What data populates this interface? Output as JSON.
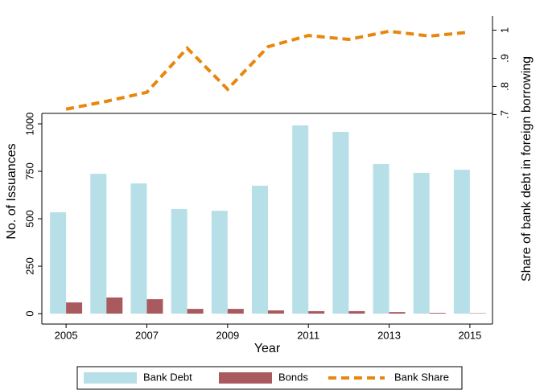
{
  "chart_data": {
    "type": "bar-line",
    "x": [
      2005,
      2006,
      2007,
      2008,
      2009,
      2010,
      2011,
      2012,
      2013,
      2014,
      2015
    ],
    "xlim": [
      2004.4,
      2015.56
    ],
    "xticks": [
      2005,
      2007,
      2009,
      2011,
      2013,
      2015
    ],
    "x_label": "Year",
    "y_label": "No. of Issuances",
    "y2_label": "Share of bank debt in foreign borrowing",
    "ylim": [
      -55,
      1568
    ],
    "yticks": [
      0,
      250,
      500,
      750,
      1000
    ],
    "y2lim": [
      -0.045,
      1.05
    ],
    "y2ticks": [
      {
        "value": 0.7,
        "label": ".7"
      },
      {
        "value": 0.8,
        "label": ".8"
      },
      {
        "value": 0.9,
        "label": ".9"
      },
      {
        "value": 1,
        "label": "1"
      }
    ],
    "series": [
      {
        "name": "Bank Debt",
        "kind": "bar",
        "color": "#b7dfe7",
        "values": [
          534,
          737,
          686,
          551,
          542,
          674,
          992,
          958,
          788,
          742,
          758
        ]
      },
      {
        "name": "Bonds",
        "kind": "bar",
        "color": "#a85a5e",
        "values": [
          59,
          85,
          76,
          25,
          25,
          17,
          13,
          13,
          8,
          4,
          2
        ]
      },
      {
        "name": "Bank Share",
        "kind": "line",
        "axis": "y2",
        "color": "#e8870e",
        "values": [
          0.719,
          0.747,
          0.779,
          0.936,
          0.79,
          0.941,
          0.981,
          0.967,
          0.996,
          0.979,
          0.993
        ]
      }
    ]
  }
}
